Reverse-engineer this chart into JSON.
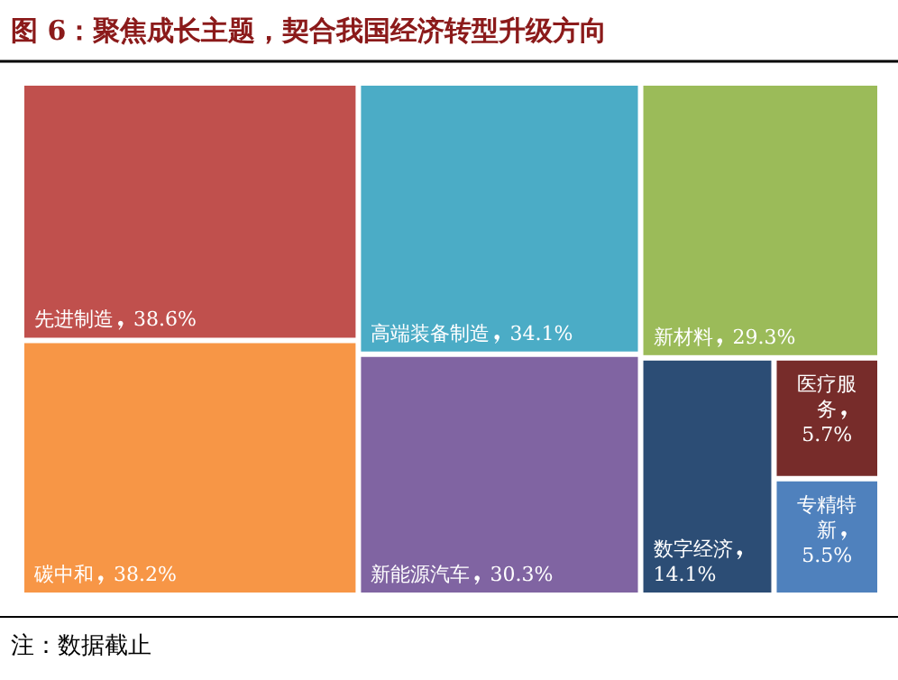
{
  "chart_data": {
    "type": "other",
    "title": "图 6：聚焦成长主题，契合我国经济转型升级方向",
    "categories": [
      "先进制造",
      "碳中和",
      "高端装备制造",
      "新能源汽车",
      "新材料",
      "数字经济",
      "医疗服务",
      "专精特新"
    ],
    "values": [
      38.6,
      38.2,
      34.1,
      30.3,
      29.3,
      14.1,
      5.7,
      5.5
    ],
    "value_labels": [
      "38.6%",
      "38.2%",
      "34.1%",
      "30.3%",
      "29.3%",
      "14.1%",
      "5.7%",
      "5.5%"
    ],
    "colors": [
      "#c0504d",
      "#f79646",
      "#4bacc6",
      "#8064a2",
      "#9bbb59",
      "#2c4d75",
      "#772c2a",
      "#4f81bd"
    ],
    "annotations": [
      "注：数据截止"
    ]
  }
}
